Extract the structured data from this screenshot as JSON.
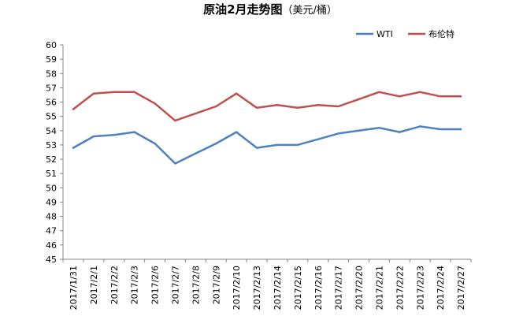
{
  "chart_data": {
    "type": "line",
    "title": "原油2月走势图",
    "title_unit": "（美元/桶）",
    "legend_position": "top-right",
    "grid": false,
    "ylim": [
      45,
      60
    ],
    "yticks": [
      45,
      46,
      47,
      48,
      49,
      50,
      51,
      52,
      53,
      54,
      55,
      56,
      57,
      58,
      59,
      60
    ],
    "categories": [
      "2017/1/31",
      "2017/2/1",
      "2017/2/2",
      "2017/2/3",
      "2017/2/6",
      "2017/2/7",
      "2017/2/8",
      "2017/2/9",
      "2017/2/10",
      "2017/2/13",
      "2017/2/14",
      "2017/2/15",
      "2017/2/16",
      "2017/2/17",
      "2017/2/20",
      "2017/2/21",
      "2017/2/22",
      "2017/2/23",
      "2017/2/24",
      "2017/2/27"
    ],
    "series": [
      {
        "name": "WTI",
        "color": "#4F81BD",
        "values": [
          52.8,
          53.6,
          53.7,
          53.9,
          53.1,
          51.7,
          52.4,
          53.1,
          53.9,
          52.8,
          53.0,
          53.0,
          53.4,
          53.8,
          54.0,
          54.2,
          53.9,
          54.3,
          54.1,
          54.1
        ]
      },
      {
        "name": "布伦特",
        "color": "#C0504D",
        "values": [
          55.5,
          56.6,
          56.7,
          56.7,
          55.9,
          54.7,
          55.2,
          55.7,
          56.6,
          55.6,
          55.8,
          55.6,
          55.8,
          55.7,
          56.2,
          56.7,
          56.4,
          56.7,
          56.4,
          56.4
        ]
      }
    ]
  }
}
